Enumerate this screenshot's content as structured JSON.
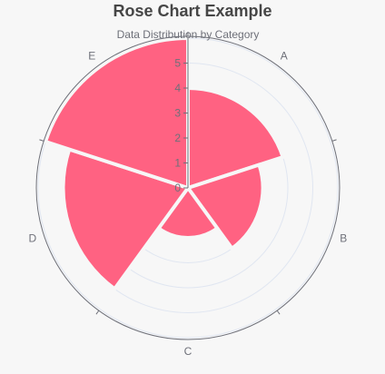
{
  "chart_data": {
    "type": "rose",
    "title": "Rose Chart Example",
    "subtitle": "Data Distribution by Category",
    "categories": [
      "A",
      "B",
      "C",
      "D",
      "E"
    ],
    "values": [
      4,
      3,
      2,
      5,
      6
    ],
    "radial_ticks": [
      "0",
      "1",
      "2",
      "3",
      "4",
      "5"
    ],
    "rlim": [
      0,
      6
    ],
    "grid": true,
    "legend": "none",
    "colors": {
      "sector": "#ff6282",
      "outer_circle": "#6e7079",
      "grid_circle": "#e0e6f1",
      "radial_axis": "#6e7079",
      "title": "#464646",
      "label": "#6e7079",
      "background": "#f7f7f7"
    }
  }
}
